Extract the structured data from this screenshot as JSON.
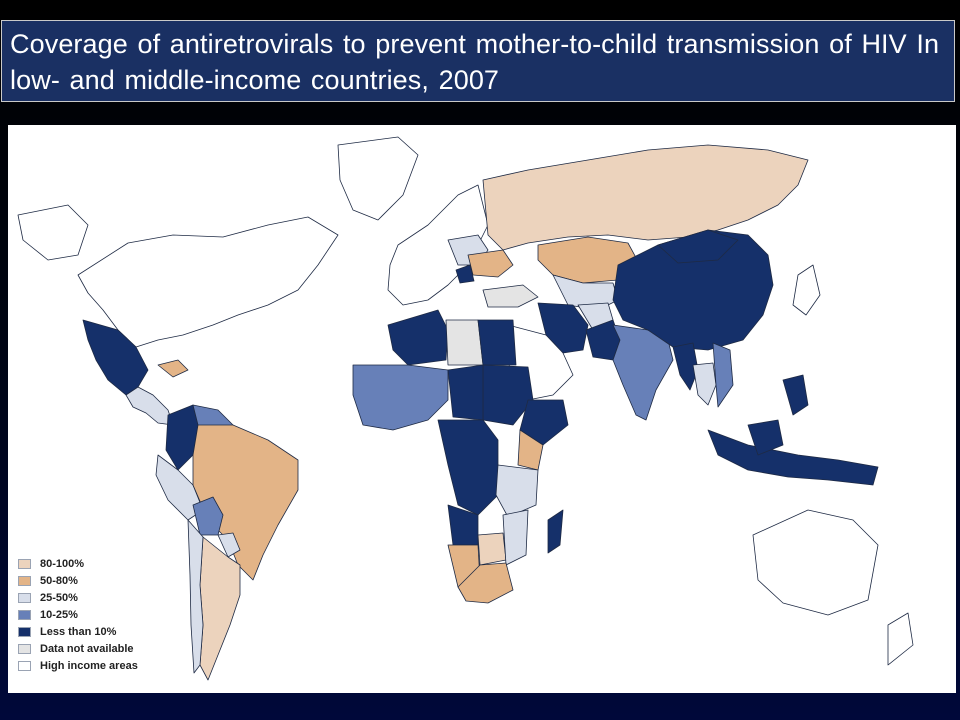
{
  "title": "Coverage of antiretrovirals to prevent mother-to-child transmission of HIV In low- and middle-income countries, 2007",
  "colors": {
    "c80_100": "#ecd3bd",
    "c50_80": "#e3b487",
    "c25_50": "#d8deea",
    "c10_25": "#6780b8",
    "lt10": "#15306a",
    "na": "#e4e4e4",
    "high": "#ffffff",
    "border": "#1e2a44"
  },
  "legend": [
    {
      "label": "80-100%",
      "color": "#ecd3bd"
    },
    {
      "label": "50-80%",
      "color": "#e3b487"
    },
    {
      "label": "25-50%",
      "color": "#d8deea"
    },
    {
      "label": "10-25%",
      "color": "#6780b8"
    },
    {
      "label": "Less than 10%",
      "color": "#15306a"
    },
    {
      "label": "Data not available",
      "color": "#e4e4e4"
    },
    {
      "label": "High income areas",
      "color": "#ffffff"
    }
  ]
}
